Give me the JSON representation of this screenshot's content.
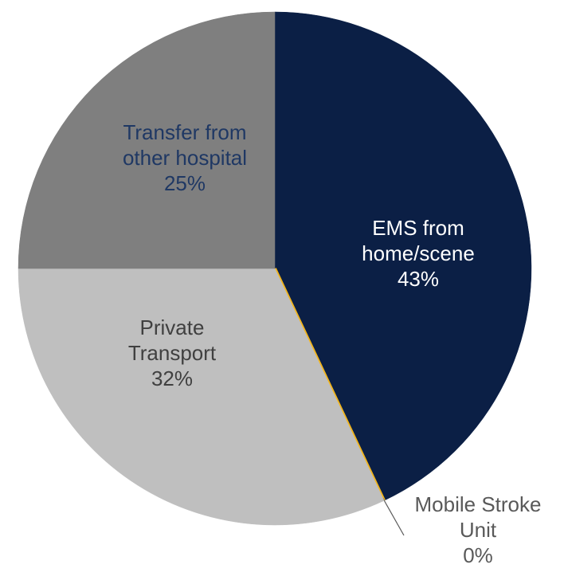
{
  "chart_data": {
    "type": "pie",
    "categories": [
      "EMS from home/scene",
      "Mobile Stroke Unit",
      "Private Transport",
      "Transfer from other hospital"
    ],
    "values": [
      43,
      0,
      32,
      25
    ],
    "value_labels": [
      "43%",
      "0%",
      "32%",
      "25%"
    ],
    "colors": [
      "#0b1f45",
      "#f2b51c",
      "#bfbfbf",
      "#7f7f7f"
    ]
  }
}
